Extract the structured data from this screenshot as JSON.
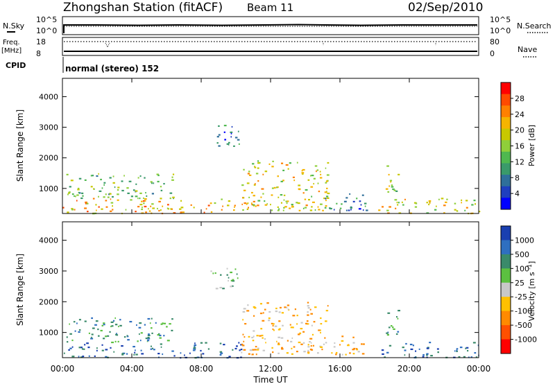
{
  "header": {
    "title": "Zhongshan Station (fitACF)",
    "beam": "Beam 11",
    "date": "02/Sep/2010"
  },
  "status_panels": {
    "nsky_label": "N.Sky",
    "nsearch_label": "N.Search",
    "nsky_ticks": [
      "10^5",
      "10^0"
    ],
    "nsearch_ticks": [
      "10^5",
      "10^0"
    ],
    "freq_label": "Freq.",
    "freq_unit": "[MHz]",
    "freq_ticks": [
      "18",
      "8"
    ],
    "nave_label": "Nave",
    "nave_ticks": [
      "80",
      "0"
    ],
    "cpid_label": "CPID",
    "cpid_value": "normal (stereo) 152"
  },
  "power_panel": {
    "ylabel": "Slant Range [km]",
    "yticks": [
      "4000",
      "3000",
      "2000",
      "1000"
    ],
    "colorbar_label": "Power [dB]",
    "colorbar_ticks": [
      "28",
      "24",
      "20",
      "16",
      "12",
      "8",
      "4"
    ],
    "colorbar_colors": [
      "#ff0000",
      "#ff4a00",
      "#ff8000",
      "#f5b400",
      "#c8c800",
      "#8fcf3a",
      "#4fb84f",
      "#3a9a6a",
      "#2f6f9a",
      "#1f3fbf",
      "#0000ff"
    ]
  },
  "velocity_panel": {
    "ylabel": "Slant Range [km]",
    "yticks": [
      "4000",
      "3000",
      "2000",
      "1000"
    ],
    "colorbar_label": "Velocity [m s^-1]",
    "colorbar_ticks": [
      "1000",
      "500",
      "100",
      "25",
      "-25",
      "-100",
      "-500",
      "-1000"
    ],
    "colorbar_colors": [
      "#1a3fb0",
      "#2f6fc0",
      "#3a8a6a",
      "#5cc040",
      "#c8c8c8",
      "#ffc000",
      "#ff8a00",
      "#ff5000",
      "#ff0000"
    ]
  },
  "xaxis": {
    "ticks": [
      "00:00",
      "04:00",
      "08:00",
      "12:00",
      "16:00",
      "20:00",
      "00:00"
    ],
    "label": "Time UT"
  },
  "chart_data": [
    {
      "type": "heatmap",
      "variable": "Power",
      "x_range_hours": [
        0,
        24
      ],
      "y_range_km": [
        180,
        4600
      ],
      "colorbar_range_db": [
        0,
        32
      ],
      "echo_regions": [
        {
          "t0": 0.0,
          "t1": 10.3,
          "r0": 200,
          "r1": 700,
          "value": 24
        },
        {
          "t0": 0.2,
          "t1": 6.5,
          "r0": 700,
          "r1": 1500,
          "value": 12
        },
        {
          "t0": 8.5,
          "t1": 10.2,
          "r0": 2400,
          "r1": 3100,
          "value": 8
        },
        {
          "t0": 10.3,
          "t1": 15.3,
          "r0": 300,
          "r1": 2000,
          "value": 20
        },
        {
          "t0": 15.0,
          "t1": 17.5,
          "r0": 300,
          "r1": 900,
          "value": 8
        },
        {
          "t0": 18.2,
          "t1": 24.0,
          "r0": 200,
          "r1": 700,
          "value": 20
        },
        {
          "t0": 18.6,
          "t1": 19.5,
          "r0": 900,
          "r1": 1800,
          "value": 16
        }
      ]
    },
    {
      "type": "heatmap",
      "variable": "Velocity",
      "x_range_hours": [
        0,
        24
      ],
      "y_range_km": [
        180,
        4600
      ],
      "colorbar_range_ms": [
        -1000,
        1000
      ],
      "echo_regions": [
        {
          "t0": 0.0,
          "t1": 10.3,
          "r0": 200,
          "r1": 700,
          "value": 500
        },
        {
          "t0": 0.2,
          "t1": 6.5,
          "r0": 700,
          "r1": 1500,
          "value": 100
        },
        {
          "t0": 8.5,
          "t1": 10.2,
          "r0": 2400,
          "r1": 3100,
          "value": 25
        },
        {
          "t0": 10.3,
          "t1": 15.3,
          "r0": 300,
          "r1": 2000,
          "value": -100
        },
        {
          "t0": 15.0,
          "t1": 17.5,
          "r0": 300,
          "r1": 900,
          "value": -100
        },
        {
          "t0": 18.2,
          "t1": 24.0,
          "r0": 200,
          "r1": 700,
          "value": 500
        },
        {
          "t0": 18.6,
          "t1": 19.5,
          "r0": 900,
          "r1": 1800,
          "value": 100
        }
      ]
    }
  ]
}
